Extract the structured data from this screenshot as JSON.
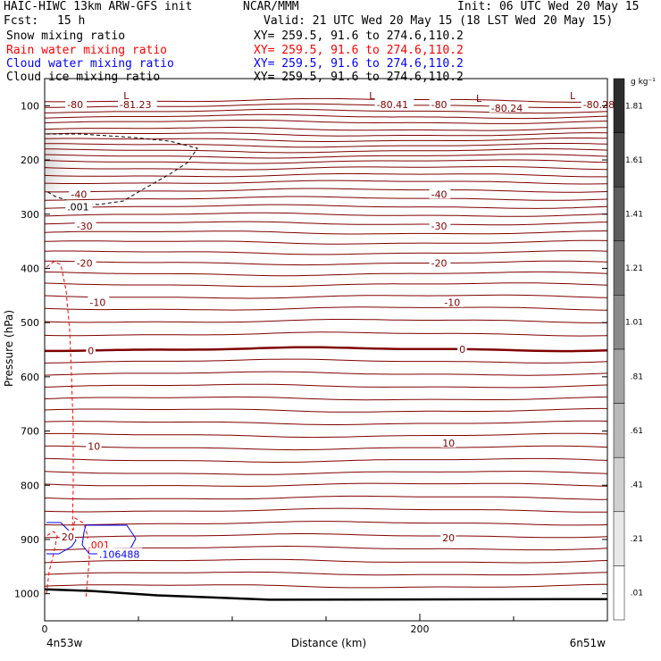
{
  "header": {
    "model": "HAIC-HIWC 13km ARW-GFS init",
    "center": "NCAR/MMM",
    "init": "Init: 06 UTC Wed 20 May 15",
    "fcst_label": "Fcst:",
    "fcst_value": "15 h",
    "valid": "Valid: 21 UTC Wed 20 May 15 (18 LST Wed 20 May 15)",
    "fields": [
      {
        "name": "Snow mixing ratio",
        "xy": "XY= 259.5, 91.6 to 274.6,110.2",
        "color": "#000000"
      },
      {
        "name": "Rain water mixing ratio",
        "xy": "XY= 259.5, 91.6 to 274.6,110.2",
        "color": "#ff0000"
      },
      {
        "name": "Cloud water mixing ratio",
        "xy": "XY= 259.5, 91.6 to 274.6,110.2",
        "color": "#0000ff"
      },
      {
        "name": "Cloud ice mixing ratio",
        "xy": "XY= 259.5, 91.6 to 274.6,110.2",
        "color": "#000000"
      }
    ]
  },
  "chart_data": {
    "type": "contour-cross-section",
    "xlabel": "Distance (km)",
    "ylabel": "Pressure (hPa)",
    "xlim": [
      0,
      300
    ],
    "ylim": [
      1050,
      50
    ],
    "x_ticks": [
      {
        "value": 0,
        "label": "0"
      },
      {
        "value": 200,
        "label": "200"
      }
    ],
    "x_minor_ticks": [
      50,
      100,
      150,
      250
    ],
    "x_endpoints": {
      "left": "4n53w",
      "right": "6n51w"
    },
    "y_ticks": [
      {
        "value": 100,
        "label": "100"
      },
      {
        "value": 200,
        "label": "200"
      },
      {
        "value": 300,
        "label": "300"
      },
      {
        "value": 400,
        "label": "400"
      },
      {
        "value": 500,
        "label": "500"
      },
      {
        "value": 600,
        "label": "600"
      },
      {
        "value": 700,
        "label": "700"
      },
      {
        "value": 800,
        "label": "800"
      },
      {
        "value": 900,
        "label": "900"
      },
      {
        "value": 1000,
        "label": "1000"
      }
    ],
    "temperature_contours": {
      "color": "#800000",
      "levels_p": [
        90,
        100,
        110,
        120,
        130,
        143,
        153,
        163,
        173,
        183,
        193,
        203,
        215,
        228,
        241,
        256,
        271,
        286,
        301,
        317,
        334,
        352,
        371,
        390,
        410,
        430,
        452,
        474,
        497,
        521,
        549,
        571,
        594,
        617,
        640,
        662,
        685,
        708,
        731,
        754,
        777,
        799,
        823,
        846,
        870,
        893,
        916,
        940,
        963,
        986
      ],
      "zero_isotherm_p": 549,
      "labels": [
        {
          "text": "-80",
          "x": 12,
          "p": 98
        },
        {
          "text": "-81.23",
          "x": 40,
          "p": 98
        },
        {
          "text": "-80.41",
          "x": 177,
          "p": 98
        },
        {
          "text": "-80",
          "x": 206,
          "p": 98
        },
        {
          "text": "-80.24",
          "x": 238,
          "p": 104
        },
        {
          "text": "-80.28",
          "x": 287,
          "p": 98
        },
        {
          "text": "-40",
          "x": 14,
          "p": 263
        },
        {
          "text": "-40",
          "x": 206,
          "p": 263
        },
        {
          "text": "-30",
          "x": 17,
          "p": 322
        },
        {
          "text": "-30",
          "x": 206,
          "p": 322
        },
        {
          "text": "-20",
          "x": 17,
          "p": 390
        },
        {
          "text": "-20",
          "x": 206,
          "p": 390
        },
        {
          "text": "-10",
          "x": 24,
          "p": 463
        },
        {
          "text": "-10",
          "x": 213,
          "p": 463
        },
        {
          "text": "0",
          "x": 23,
          "p": 552
        },
        {
          "text": "0",
          "x": 221,
          "p": 549
        },
        {
          "text": "10",
          "x": 23,
          "p": 728
        },
        {
          "text": "10",
          "x": 212,
          "p": 722
        },
        {
          "text": "20",
          "x": 9,
          "p": 895
        },
        {
          "text": "20",
          "x": 212,
          "p": 897
        }
      ],
      "lows": [
        {
          "text": "L",
          "x": 42,
          "p": 81
        },
        {
          "text": "L",
          "x": 173,
          "p": 81
        },
        {
          "text": "L",
          "x": 230,
          "p": 86
        },
        {
          "text": "L",
          "x": 280,
          "p": 81
        }
      ]
    },
    "cloud_ice_labels": [
      {
        "text": ".001",
        "x": 12,
        "p": 286
      }
    ],
    "rain_labels": [
      {
        "text": ".001",
        "x": 23,
        "p": 910
      }
    ],
    "cloud_water_labels": [
      {
        "text": ".106488",
        "x": 29,
        "p": 927
      }
    ],
    "terrain_p": [
      {
        "x": 0,
        "p": 992
      },
      {
        "x": 25,
        "p": 995
      },
      {
        "x": 60,
        "p": 1003
      },
      {
        "x": 120,
        "p": 1011
      },
      {
        "x": 300,
        "p": 1010
      }
    ],
    "snow_colorbar": {
      "unit": "g kg⁻¹",
      "labels": [
        "1.81",
        "1.61",
        "1.41",
        "1.21",
        "1.01",
        ".81",
        ".61",
        ".41",
        ".21",
        ".01"
      ],
      "range": [
        0,
        2.0
      ]
    }
  }
}
